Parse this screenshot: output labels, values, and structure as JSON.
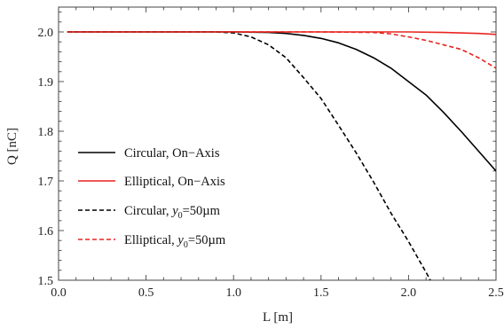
{
  "chart_data": {
    "type": "line",
    "title": "",
    "xlabel": "L [m]",
    "ylabel": "Q [nC]",
    "xlim": [
      0.0,
      2.5
    ],
    "ylim": [
      1.5,
      2.05
    ],
    "xticks": [
      "0.0",
      "0.5",
      "1.0",
      "1.5",
      "2.0",
      "2.5"
    ],
    "yticks": [
      "1.5",
      "1.6",
      "1.7",
      "1.8",
      "1.9",
      "2.0"
    ],
    "grid": false,
    "legend_position": "lower-left",
    "series": [
      {
        "name": "Circular, On−Axis",
        "color": "#000000",
        "dash": "solid",
        "x": [
          0.05,
          0.5,
          1.0,
          1.2,
          1.3,
          1.4,
          1.5,
          1.6,
          1.7,
          1.8,
          1.9,
          2.0,
          2.1,
          2.2,
          2.3,
          2.4,
          2.5
        ],
        "y": [
          2.0,
          2.0,
          2.0,
          1.999,
          1.997,
          1.993,
          1.987,
          1.978,
          1.965,
          1.948,
          1.927,
          1.9,
          1.873,
          1.838,
          1.8,
          1.76,
          1.72
        ]
      },
      {
        "name": "Elliptical, On−Axis",
        "color": "#e8231f",
        "dash": "solid",
        "x": [
          0.05,
          1.0,
          2.0,
          2.2,
          2.4,
          2.5
        ],
        "y": [
          2.0,
          2.0,
          2.0,
          1.999,
          1.997,
          1.995
        ]
      },
      {
        "name": "Circular, y0=50µm",
        "color": "#000000",
        "dash": "dashed",
        "x": [
          0.05,
          0.5,
          0.9,
          1.0,
          1.1,
          1.2,
          1.3,
          1.4,
          1.5,
          1.6,
          1.7,
          1.8,
          1.9,
          2.0,
          2.1,
          2.125
        ],
        "y": [
          2.0,
          2.0,
          2.0,
          1.998,
          1.99,
          1.974,
          1.948,
          1.908,
          1.866,
          1.812,
          1.757,
          1.698,
          1.635,
          1.578,
          1.516,
          1.5
        ]
      },
      {
        "name": "Elliptical, y0=50µm",
        "color": "#e8231f",
        "dash": "dashed",
        "x": [
          0.05,
          1.5,
          1.8,
          1.9,
          2.0,
          2.1,
          2.2,
          2.3,
          2.4,
          2.5
        ],
        "y": [
          2.0,
          2.0,
          1.999,
          1.996,
          1.99,
          1.983,
          1.974,
          1.965,
          1.948,
          1.927
        ]
      }
    ],
    "legend": [
      {
        "prefix": "Circular, On−Axis",
        "subscript": "",
        "suffix": ""
      },
      {
        "prefix": "Elliptical, On−Axis",
        "subscript": "",
        "suffix": ""
      },
      {
        "prefix": "Circular, ",
        "italic": "y",
        "subscript": "0",
        "suffix": "=50µm"
      },
      {
        "prefix": "Elliptical, ",
        "italic": "y",
        "subscript": "0",
        "suffix": "=50µm"
      }
    ]
  }
}
